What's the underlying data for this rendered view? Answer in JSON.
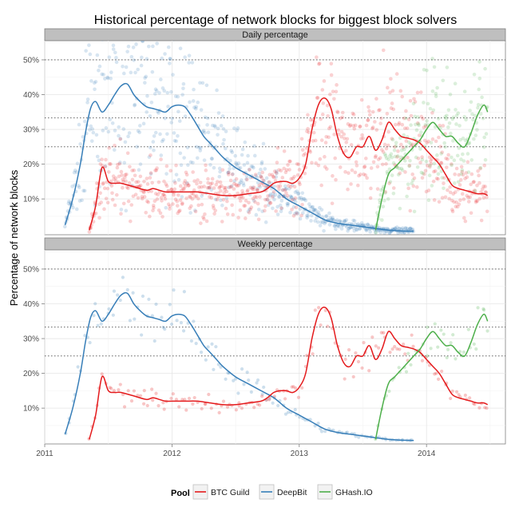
{
  "chart_data": {
    "type": "scatter+line",
    "title": "Historical percentage of network blocks for biggest block solvers",
    "xlabel": "",
    "ylabel": "Percentage of network blocks",
    "x_ticks": [
      "2011",
      "2012",
      "2013",
      "2014"
    ],
    "x_range": [
      2011.0,
      2014.62
    ],
    "y_ticks": [
      "10%",
      "20%",
      "30%",
      "40%",
      "50%"
    ],
    "y_range": [
      -0.3,
      55.5
    ],
    "reference_lines": [
      25,
      33.3,
      50
    ],
    "colors": {
      "BTC Guild": "#e41a1c",
      "DeepBit": "#377eb8",
      "GHash.IO": "#4daf4a"
    },
    "legend": {
      "title": "Pool",
      "entries": [
        "BTC Guild",
        "DeepBit",
        "GHash.IO"
      ],
      "position": "bottom"
    },
    "panels": [
      {
        "strip": "Daily percentage",
        "series": [
          {
            "name": "DeepBit",
            "x": [
              2011.16,
              2011.22,
              2011.28,
              2011.32,
              2011.36,
              2011.4,
              2011.45,
              2011.5,
              2011.55,
              2011.6,
              2011.65,
              2011.7,
              2011.75,
              2011.8,
              2011.85,
              2011.9,
              2011.95,
              2012.0,
              2012.05,
              2012.1,
              2012.15,
              2012.2,
              2012.25,
              2012.3,
              2012.35,
              2012.4,
              2012.5,
              2012.6,
              2012.7,
              2012.8,
              2012.9,
              2013.0,
              2013.1,
              2013.2,
              2013.3,
              2013.4,
              2013.5,
              2013.6,
              2013.7,
              2013.8,
              2013.9
            ],
            "y": [
              2.5,
              10,
              20,
              29,
              36,
              38,
              35,
              37,
              40,
              42.5,
              43,
              40,
              38,
              36.5,
              36,
              35.5,
              35,
              36.5,
              37,
              36.5,
              34,
              31,
              28,
              26,
              24,
              22,
              19,
              17,
              15,
              13,
              10,
              8,
              6,
              4,
              3,
              2.5,
              2,
              1.5,
              1,
              0.8,
              0.7
            ]
          },
          {
            "name": "BTC Guild",
            "x": [
              2011.35,
              2011.4,
              2011.45,
              2011.5,
              2011.55,
              2011.6,
              2011.7,
              2011.8,
              2011.85,
              2011.9,
              2011.95,
              2012.0,
              2012.1,
              2012.2,
              2012.3,
              2012.4,
              2012.5,
              2012.6,
              2012.7,
              2012.75,
              2012.8,
              2012.85,
              2012.9,
              2012.95,
              2013.0,
              2013.05,
              2013.1,
              2013.15,
              2013.2,
              2013.25,
              2013.3,
              2013.35,
              2013.4,
              2013.45,
              2013.5,
              2013.55,
              2013.6,
              2013.65,
              2013.7,
              2013.75,
              2013.8,
              2013.85,
              2013.9,
              2013.95,
              2014.0,
              2014.05,
              2014.1,
              2014.15,
              2014.2,
              2014.25,
              2014.3,
              2014.35,
              2014.4,
              2014.45,
              2014.48
            ],
            "y": [
              1,
              8,
              19,
              15,
              14.5,
              14.5,
              13.5,
              12.5,
              13,
              12.5,
              12,
              12,
              12,
              12,
              11.5,
              11,
              11,
              11.5,
              12,
              13,
              14.5,
              15,
              15,
              14.5,
              16,
              20,
              30,
              37,
              39,
              36,
              28,
              23,
              22,
              25,
              25,
              28,
              24,
              27,
              32,
              30,
              28,
              27.5,
              27,
              26,
              24,
              22,
              20,
              17,
              14,
              13,
              12.5,
              12,
              11.5,
              11.5,
              11
            ]
          },
          {
            "name": "GHash.IO",
            "x": [
              2013.6,
              2013.65,
              2013.7,
              2013.75,
              2013.8,
              2013.85,
              2013.9,
              2013.95,
              2014.0,
              2014.05,
              2014.1,
              2014.15,
              2014.2,
              2014.25,
              2014.3,
              2014.35,
              2014.4,
              2014.45,
              2014.48
            ],
            "y": [
              1,
              10,
              17,
              19,
              21,
              23,
              25,
              27,
              30,
              32,
              30,
              28,
              28,
              26,
              25,
              29,
              34,
              37,
              35
            ]
          }
        ]
      },
      {
        "strip": "Weekly percentage",
        "series": [
          {
            "name": "DeepBit",
            "x": [
              2011.16,
              2011.22,
              2011.28,
              2011.32,
              2011.36,
              2011.4,
              2011.45,
              2011.5,
              2011.55,
              2011.6,
              2011.65,
              2011.7,
              2011.75,
              2011.8,
              2011.85,
              2011.9,
              2011.95,
              2012.0,
              2012.05,
              2012.1,
              2012.15,
              2012.2,
              2012.25,
              2012.3,
              2012.35,
              2012.4,
              2012.5,
              2012.6,
              2012.7,
              2012.8,
              2012.9,
              2013.0,
              2013.1,
              2013.2,
              2013.3,
              2013.4,
              2013.5,
              2013.6,
              2013.7,
              2013.8,
              2013.9
            ],
            "y": [
              2.5,
              10,
              20,
              29,
              36,
              38,
              35,
              37,
              40,
              42.5,
              43,
              40,
              38,
              36.5,
              36,
              35.5,
              35,
              36.5,
              37,
              36.5,
              34,
              31,
              28,
              26,
              24,
              22,
              19,
              17,
              15,
              13,
              10,
              8,
              6,
              4,
              3,
              2.5,
              2,
              1.5,
              1,
              0.8,
              0.7
            ]
          },
          {
            "name": "BTC Guild",
            "x": [
              2011.35,
              2011.4,
              2011.45,
              2011.5,
              2011.55,
              2011.6,
              2011.7,
              2011.8,
              2011.85,
              2011.9,
              2011.95,
              2012.0,
              2012.1,
              2012.2,
              2012.3,
              2012.4,
              2012.5,
              2012.6,
              2012.7,
              2012.75,
              2012.8,
              2012.85,
              2012.9,
              2012.95,
              2013.0,
              2013.05,
              2013.1,
              2013.15,
              2013.2,
              2013.25,
              2013.3,
              2013.35,
              2013.4,
              2013.45,
              2013.5,
              2013.55,
              2013.6,
              2013.65,
              2013.7,
              2013.75,
              2013.8,
              2013.85,
              2013.9,
              2013.95,
              2014.0,
              2014.05,
              2014.1,
              2014.15,
              2014.2,
              2014.25,
              2014.3,
              2014.35,
              2014.4,
              2014.45,
              2014.48
            ],
            "y": [
              1,
              8,
              19,
              15,
              14.5,
              14.5,
              13.5,
              12.5,
              13,
              12.5,
              12,
              12,
              12,
              12,
              11.5,
              11,
              11,
              11.5,
              12,
              13,
              14.5,
              15,
              15,
              14.5,
              16,
              20,
              30,
              37,
              39,
              36,
              28,
              23,
              22,
              25,
              25,
              28,
              24,
              27,
              32,
              30,
              28,
              27.5,
              27,
              26,
              24,
              22,
              20,
              17,
              14,
              13,
              12.5,
              12,
              11.5,
              11.5,
              11
            ]
          },
          {
            "name": "GHash.IO",
            "x": [
              2013.6,
              2013.65,
              2013.7,
              2013.75,
              2013.8,
              2013.85,
              2013.9,
              2013.95,
              2014.0,
              2014.05,
              2014.1,
              2014.15,
              2014.2,
              2014.25,
              2014.3,
              2014.35,
              2014.4,
              2014.45,
              2014.48
            ],
            "y": [
              1,
              10,
              17,
              19,
              21,
              23,
              25,
              27,
              30,
              32,
              30,
              28,
              28,
              26,
              25,
              29,
              34,
              37,
              35
            ]
          }
        ]
      }
    ]
  }
}
